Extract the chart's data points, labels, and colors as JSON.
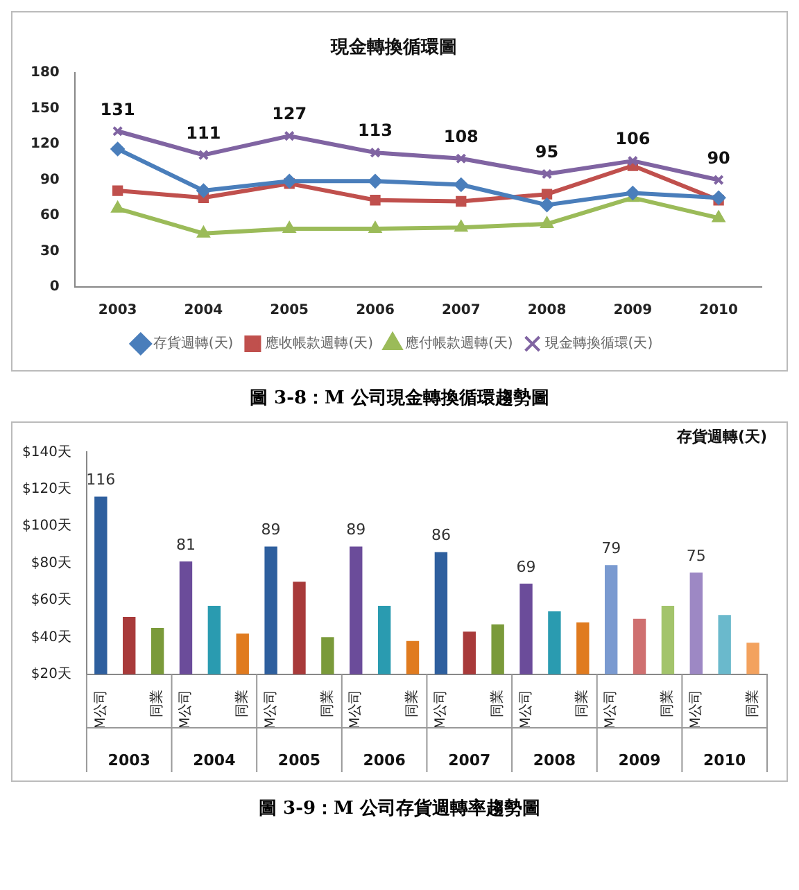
{
  "chart_data": [
    {
      "type": "line",
      "title": "現金轉換循環圖",
      "categories": [
        "2003",
        "2004",
        "2005",
        "2006",
        "2007",
        "2008",
        "2009",
        "2010"
      ],
      "series": [
        {
          "name": "存貨週轉(天)",
          "color": "#4a7ebb",
          "marker": "diamond",
          "values": [
            116,
            81,
            89,
            89,
            86,
            69,
            79,
            75
          ]
        },
        {
          "name": "應收帳款週轉(天)",
          "color": "#c0504d",
          "marker": "square",
          "values": [
            81,
            75,
            87,
            73,
            72,
            78,
            102,
            73
          ]
        },
        {
          "name": "應付帳款週轉(天)",
          "color": "#9bbb59",
          "marker": "triangle",
          "values": [
            66,
            45,
            49,
            49,
            50,
            53,
            75,
            58
          ]
        },
        {
          "name": "現金轉換循環(天)",
          "color": "#8064a2",
          "marker": "cross",
          "values": [
            131,
            111,
            127,
            113,
            108,
            95,
            106,
            90
          ],
          "value_labels": [
            "131",
            "111",
            "127",
            "113",
            "108",
            "95",
            "106",
            "90"
          ]
        }
      ],
      "ylim": [
        0,
        180
      ],
      "yticks": [
        0,
        30,
        60,
        90,
        120,
        150,
        180
      ],
      "grid": false,
      "legend": "bottom",
      "line_style": "solid",
      "annotations": [
        "圖 3-8：M 公司現金轉換循環趨勢圖"
      ]
    },
    {
      "type": "bar",
      "title": "存貨週轉(天)",
      "categories": [
        "M公司",
        null,
        "同業",
        "M公司",
        null,
        "同業",
        "M公司",
        null,
        "同業",
        "M公司",
        null,
        "同業",
        "M公司",
        null,
        "同業",
        "M公司",
        null,
        "同業",
        "M公司",
        null,
        "同業",
        "M公司",
        null,
        "同業"
      ],
      "values": [
        116,
        51,
        45,
        81,
        57,
        42,
        89,
        70,
        40,
        89,
        57,
        38,
        86,
        43,
        47,
        69,
        54,
        48,
        79,
        50,
        57,
        75,
        52,
        37
      ],
      "colors": [
        "#2e5f9e",
        "#a83a3a",
        "#7a9a3a",
        "#6b4c9a",
        "#2a9bb0",
        "#e07b1f",
        "#2e5f9e",
        "#a83a3a",
        "#7a9a3a",
        "#6b4c9a",
        "#2a9bb0",
        "#e07b1f",
        "#2e5f9e",
        "#a83a3a",
        "#7a9a3a",
        "#6b4c9a",
        "#2a9bb0",
        "#e07b1f",
        "#7a9ad0",
        "#cf7070",
        "#a3c46b",
        "#9d88c4",
        "#6ab9cc",
        "#f3a25e"
      ],
      "value_labels": [
        "116",
        null,
        null,
        "81",
        null,
        null,
        "89",
        null,
        null,
        "89",
        null,
        null,
        "86",
        null,
        null,
        "69",
        null,
        null,
        "79",
        null,
        null,
        "75",
        null,
        null
      ],
      "ylim": [
        20,
        140
      ],
      "yticks": [
        {
          "value": 20,
          "label": "$20天"
        },
        {
          "value": 40,
          "label": "$40天"
        },
        {
          "value": 60,
          "label": "$60天"
        },
        {
          "value": 80,
          "label": "$80天"
        },
        {
          "value": 100,
          "label": "$100天"
        },
        {
          "value": 120,
          "label": "$120天"
        },
        {
          "value": 140,
          "label": "$140天"
        }
      ],
      "grid": false,
      "annotations": [
        {
          "text": "2003"
        },
        {
          "text": "2004"
        },
        {
          "text": "2005"
        },
        {
          "text": "2006"
        },
        {
          "text": "2007"
        },
        {
          "text": "2008"
        },
        {
          "text": "2009"
        },
        {
          "text": "2010"
        },
        "圖 3-9：M 公司存貨週轉率趨勢圖"
      ]
    }
  ]
}
